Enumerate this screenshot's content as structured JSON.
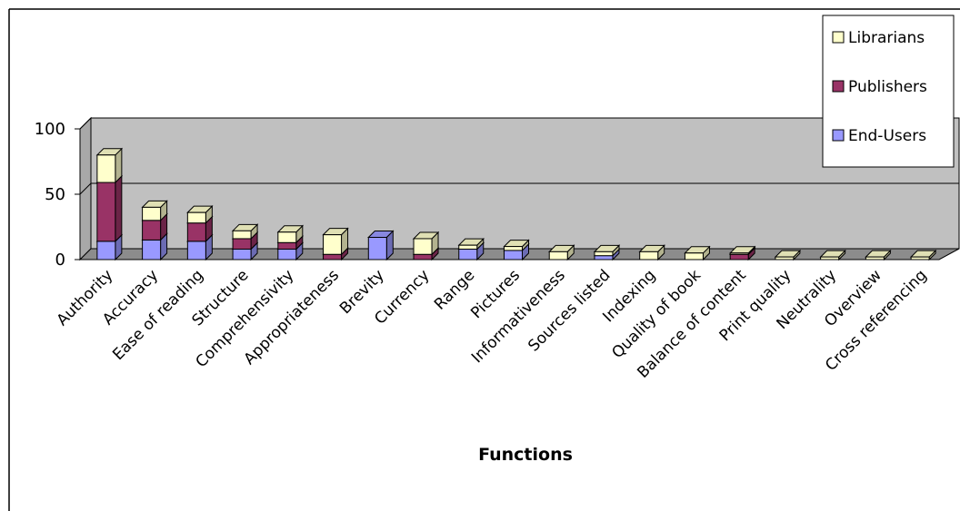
{
  "chart_data": {
    "type": "bar",
    "stacked": true,
    "three_d": true,
    "title": "",
    "xlabel": "Functions",
    "ylabel": "",
    "ylim": [
      0,
      100
    ],
    "yticks": [
      0,
      50,
      100
    ],
    "grid": true,
    "legend_position": "top-right",
    "categories": [
      "Authority",
      "Accuracy",
      "Ease of reading",
      "Structure",
      "Comprehensivity",
      "Appropriateness",
      "Brevity",
      "Currency",
      "Range",
      "Pictures",
      "Informativeness",
      "Sources listed",
      "Indexing",
      "Quality of book",
      "Balance of content",
      "Print quality",
      "Neutrality",
      "Overview",
      "Cross referencing"
    ],
    "series": [
      {
        "name": "End-Users",
        "color": "#9999ff",
        "values": [
          14,
          15,
          14,
          8,
          8,
          0,
          17,
          0,
          8,
          7,
          0,
          3,
          0,
          0,
          0,
          0,
          0,
          0,
          0
        ]
      },
      {
        "name": "Publishers",
        "color": "#993366",
        "values": [
          45,
          15,
          14,
          8,
          5,
          4,
          0,
          4,
          0,
          0,
          0,
          0,
          0,
          0,
          4,
          0,
          0,
          0,
          0
        ]
      },
      {
        "name": "Librarians",
        "color": "#ffffcc",
        "values": [
          21,
          10,
          8,
          6,
          8,
          15,
          0,
          12,
          3,
          3,
          6,
          3,
          6,
          5,
          1,
          2,
          2,
          2,
          2
        ]
      }
    ]
  }
}
